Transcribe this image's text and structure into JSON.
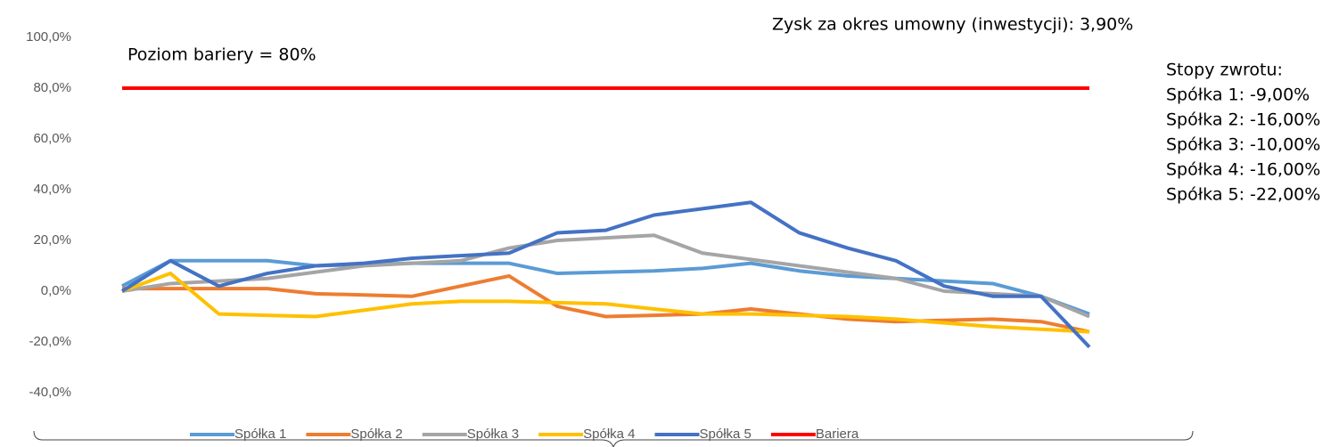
{
  "chart_data": {
    "type": "line",
    "categories": [
      null,
      null,
      null,
      null,
      null,
      null,
      null,
      null,
      null,
      null,
      null,
      null,
      null,
      null,
      null,
      null,
      null,
      null,
      null,
      null,
      null
    ],
    "series": [
      {
        "name": "Spółka 1",
        "color": "#5b9bd5",
        "values": [
          2,
          12,
          12,
          12,
          10,
          10.5,
          11,
          11,
          11,
          7,
          7.5,
          8,
          9,
          11,
          8,
          6,
          5,
          4,
          3,
          -2,
          -9
        ]
      },
      {
        "name": "Spółka 2",
        "color": "#ed7d31",
        "values": [
          1,
          1,
          1,
          1,
          -1,
          -1.5,
          -2,
          2,
          6,
          -6,
          -10,
          -9.5,
          -9,
          -7,
          -9,
          -11,
          -12,
          -11.5,
          -11,
          -12,
          -16
        ]
      },
      {
        "name": "Spółka 3",
        "color": "#a5a5a5",
        "values": [
          0,
          3,
          4,
          5,
          7.5,
          10,
          11,
          12,
          17,
          20,
          21,
          22,
          15,
          12.5,
          10,
          7.5,
          5,
          0,
          -1,
          -2,
          -10
        ]
      },
      {
        "name": "Spółka 4",
        "color": "#ffc000",
        "values": [
          0,
          7,
          -9,
          -9.5,
          -10,
          -7.5,
          -5,
          -4,
          -4,
          -4.5,
          -5,
          -7,
          -9,
          -9,
          -9.5,
          -10,
          -11,
          -12.5,
          -14,
          -15,
          -16
        ]
      },
      {
        "name": "Spółka 5",
        "color": "#4472c4",
        "values": [
          0,
          12,
          2,
          7,
          10,
          11,
          13,
          14,
          15,
          23,
          24,
          30,
          32.5,
          35,
          23,
          17,
          12,
          2,
          -2,
          -2,
          -22
        ]
      },
      {
        "name": "Bariera",
        "color": "#ff0000",
        "values": [
          80,
          80,
          80,
          80,
          80,
          80,
          80,
          80,
          80,
          80,
          80,
          80,
          80,
          80,
          80,
          80,
          80,
          80,
          80,
          80,
          80
        ]
      }
    ],
    "ylim": [
      -40,
      100
    ],
    "yticks": [
      {
        "value": -40,
        "label": "-40,0%"
      },
      {
        "value": -20,
        "label": "-20,0%"
      },
      {
        "value": 0,
        "label": "0,0%"
      },
      {
        "value": 20,
        "label": "20,0%"
      },
      {
        "value": 40,
        "label": "40,0%"
      },
      {
        "value": 60,
        "label": "60,0%"
      },
      {
        "value": 80,
        "label": "80,0%"
      },
      {
        "value": 100,
        "label": "100,0%"
      }
    ],
    "grid": false,
    "legend": "bottom",
    "annotations": [
      "Poziom bariery = 80%",
      "Zysk za okres umowny (inwestycji): 3,90%",
      "Stopy zwrotu:",
      "Spółka 1: -9,00%",
      "Spółka 2: -16,00%",
      "Spółka 3: -10,00%",
      "Spółka 4: -16,00%",
      "Spółka 5: -22,00%"
    ]
  }
}
